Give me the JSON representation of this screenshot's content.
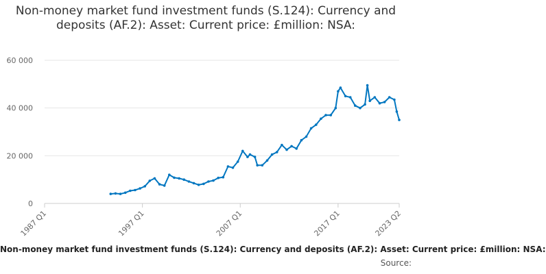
{
  "chart_data": {
    "type": "line",
    "title": "Non-money market fund investment funds (S.124): Currency and deposits (AF.2): Asset: Current price: £million: NSA:",
    "xlabel": "",
    "ylabel": "",
    "x_ticks": [
      "1987 Q1",
      "1997 Q1",
      "2007 Q1",
      "2017 Q1",
      "2023 Q2"
    ],
    "y_ticks": [
      "0",
      "20 000",
      "40 000",
      "60 000"
    ],
    "ylim": [
      0,
      60000
    ],
    "grid": true,
    "caption": "Non-money market fund investment funds (S.124): Currency and deposits (AF.2): Asset: Current price: £million: NSA:",
    "source_label": "Source:",
    "color": "#0076c0",
    "series": [
      {
        "x": [
          "1993 Q4",
          "1994 Q2",
          "1994 Q4",
          "1995 Q2",
          "1995 Q4",
          "1996 Q2",
          "1996 Q4",
          "1997 Q2",
          "1997 Q4",
          "1998 Q2",
          "1998 Q4",
          "1999 Q2",
          "1999 Q4",
          "2000 Q2",
          "2000 Q4",
          "2001 Q2",
          "2001 Q4",
          "2002 Q2",
          "2002 Q4",
          "2003 Q2",
          "2003 Q4",
          "2004 Q2",
          "2004 Q4",
          "2005 Q2",
          "2005 Q4",
          "2006 Q2",
          "2006 Q4",
          "2007 Q2",
          "2007 Q4",
          "2008 Q1",
          "2008 Q3",
          "2008 Q4",
          "2009 Q2",
          "2009 Q4",
          "2010 Q2",
          "2010 Q4",
          "2011 Q2",
          "2011 Q4",
          "2012 Q2",
          "2012 Q4",
          "2013 Q2",
          "2013 Q4",
          "2014 Q2",
          "2014 Q4",
          "2015 Q2",
          "2015 Q4",
          "2016 Q2",
          "2016 Q4",
          "2017 Q1",
          "2017 Q2",
          "2017 Q4",
          "2018 Q2",
          "2018 Q4",
          "2019 Q2",
          "2019 Q4",
          "2020 Q1",
          "2020 Q2",
          "2020 Q4",
          "2021 Q2",
          "2021 Q4",
          "2022 Q2",
          "2022 Q4",
          "2023 Q1",
          "2023 Q2"
        ],
        "y": [
          4000,
          4200,
          4000,
          4500,
          5300,
          5600,
          6300,
          7200,
          9500,
          10500,
          8000,
          7500,
          12000,
          10800,
          10500,
          10000,
          9200,
          8500,
          7800,
          8200,
          9200,
          9600,
          10700,
          11000,
          15500,
          15000,
          17500,
          22000,
          19500,
          20500,
          19500,
          16000,
          16000,
          18000,
          20500,
          21500,
          24500,
          22500,
          24000,
          23000,
          26500,
          28000,
          31500,
          33000,
          35500,
          37000,
          37000,
          40000,
          47000,
          48500,
          45000,
          44500,
          41000,
          40000,
          41500,
          49500,
          43000,
          44500,
          42000,
          42500,
          44500,
          43500,
          38500,
          35000
        ]
      }
    ]
  }
}
